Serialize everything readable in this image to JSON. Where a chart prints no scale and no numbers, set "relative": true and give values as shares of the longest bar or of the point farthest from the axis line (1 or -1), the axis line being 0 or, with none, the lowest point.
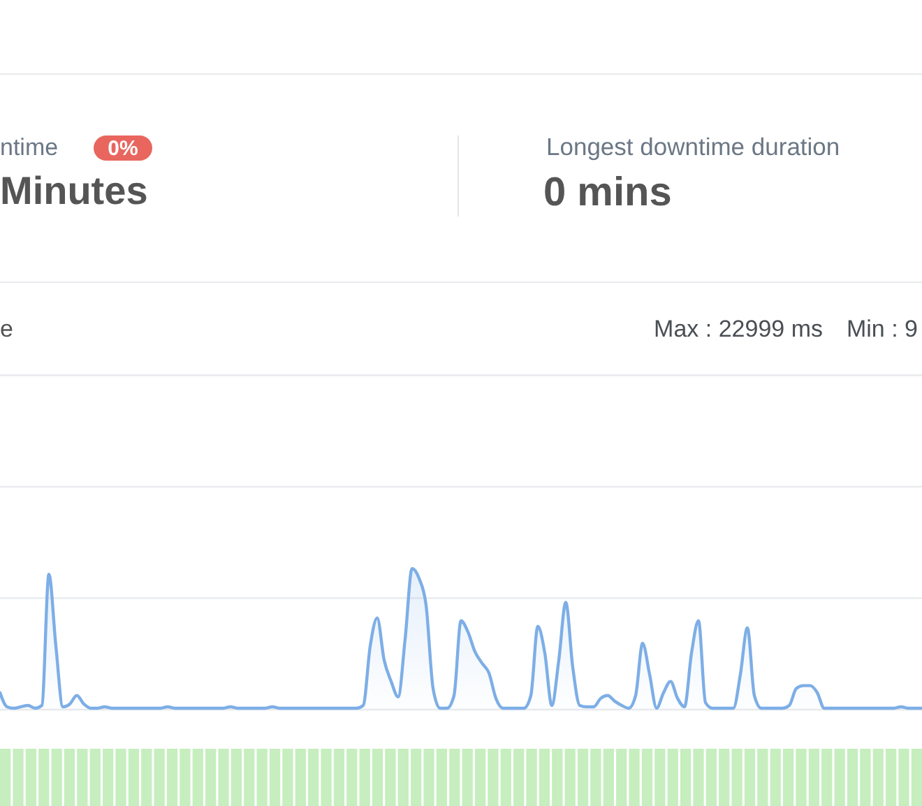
{
  "chart_data": [
    {
      "type": "other",
      "annotations": [
        "ntime",
        "0%",
        "Minutes",
        "Longest downtime duration",
        "0 mins"
      ]
    },
    {
      "type": "area",
      "title": "e",
      "annotations": [
        "Max : 22999 ms",
        "Min : 9"
      ],
      "relative": true,
      "ref_lines": [
        {
          "axis": "y",
          "value": 0.79,
          "color": "#e8eaed"
        },
        {
          "axis": "y",
          "value": 1.58,
          "color": "#e8eaed"
        },
        {
          "axis": "y",
          "value": 2.37,
          "color": "#e8eaed"
        }
      ],
      "categories": [
        null,
        null,
        null,
        null,
        null,
        null,
        null,
        null,
        null,
        null,
        null,
        null,
        null,
        null,
        null,
        null,
        null,
        null,
        null,
        null,
        null,
        null,
        null,
        null,
        null,
        null,
        null,
        null,
        null,
        null,
        null,
        null,
        null,
        null,
        null,
        null,
        null,
        null,
        null,
        null,
        null,
        null,
        null,
        null,
        null,
        null,
        null,
        null,
        null,
        null,
        null,
        null,
        null,
        null,
        null,
        null,
        null,
        null,
        null,
        null,
        null,
        null,
        null,
        null,
        null,
        null,
        null,
        null,
        null,
        null,
        null,
        null,
        null,
        null,
        null,
        null,
        null,
        null,
        null,
        null,
        null,
        null,
        null,
        null,
        null,
        null,
        null,
        null,
        null,
        null,
        null,
        null,
        null,
        null,
        null,
        null,
        null,
        null,
        null,
        null,
        null,
        null,
        null,
        null,
        null,
        null,
        null,
        null,
        null,
        null,
        null,
        null,
        null,
        null,
        null,
        null,
        null,
        null,
        null,
        null,
        null,
        null,
        null,
        null,
        null,
        null,
        null,
        null,
        null,
        null,
        null,
        null,
        null
      ],
      "series": [
        {
          "color": "#7daee6",
          "values": [
            0.12,
            0.02,
            0.01,
            0.02,
            0.03,
            0.01,
            0.03,
            0.96,
            0.45,
            0.02,
            0.04,
            0.1,
            0.04,
            0.01,
            0.01,
            0.02,
            0.01,
            0.01,
            0.01,
            0.01,
            0.01,
            0.01,
            0.01,
            0.01,
            0.02,
            0.01,
            0.01,
            0.01,
            0.01,
            0.01,
            0.01,
            0.01,
            0.01,
            0.02,
            0.01,
            0.01,
            0.01,
            0.01,
            0.01,
            0.02,
            0.01,
            0.01,
            0.01,
            0.01,
            0.01,
            0.01,
            0.01,
            0.01,
            0.01,
            0.01,
            0.01,
            0.01,
            0.03,
            0.45,
            0.65,
            0.35,
            0.2,
            0.09,
            0.5,
            1,
            0.93,
            0.74,
            0.15,
            0.01,
            0.01,
            0.1,
            0.63,
            0.55,
            0.41,
            0.33,
            0.26,
            0.08,
            0.01,
            0.01,
            0.01,
            0.01,
            0.1,
            0.59,
            0.4,
            0.03,
            0.35,
            0.76,
            0.3,
            0.03,
            0.02,
            0.02,
            0.08,
            0.1,
            0.06,
            0.03,
            0.01,
            0.1,
            0.47,
            0.25,
            0.01,
            0.12,
            0.2,
            0.08,
            0.02,
            0.4,
            0.63,
            0.05,
            0.01,
            0.01,
            0.01,
            0.01,
            0.25,
            0.58,
            0.1,
            0.01,
            0.01,
            0.01,
            0.01,
            0.03,
            0.15,
            0.17,
            0.17,
            0.12,
            0.01,
            0.01,
            0.01,
            0.01,
            0.01,
            0.01,
            0.01,
            0.01,
            0.01,
            0.01,
            0.01,
            0.02,
            0.01,
            0.01,
            0.01
          ]
        }
      ]
    },
    {
      "type": "bar",
      "relative": true,
      "color": "#c6eebf",
      "categories": [
        null,
        null,
        null,
        null,
        null,
        null,
        null,
        null,
        null,
        null,
        null,
        null,
        null,
        null,
        null,
        null,
        null,
        null,
        null,
        null,
        null,
        null,
        null,
        null,
        null,
        null,
        null,
        null,
        null,
        null,
        null,
        null,
        null,
        null,
        null,
        null,
        null,
        null,
        null,
        null,
        null,
        null,
        null,
        null,
        null,
        null,
        null,
        null,
        null,
        null,
        null,
        null,
        null,
        null,
        null,
        null,
        null,
        null,
        null,
        null,
        null,
        null,
        null,
        null,
        null,
        null,
        null,
        null,
        null,
        null,
        null,
        null
      ],
      "values": [
        1,
        1,
        1,
        1,
        1,
        1,
        1,
        1,
        1,
        1,
        1,
        1,
        1,
        1,
        1,
        1,
        1,
        1,
        1,
        1,
        1,
        1,
        1,
        1,
        1,
        1,
        1,
        1,
        1,
        1,
        1,
        1,
        1,
        1,
        1,
        1,
        1,
        1,
        1,
        1,
        1,
        1,
        1,
        1,
        1,
        1,
        1,
        1,
        1,
        1,
        1,
        1,
        1,
        1,
        1,
        1,
        1,
        1,
        1,
        1,
        1,
        1,
        1,
        1,
        1,
        1,
        1,
        1,
        1,
        1,
        1,
        1
      ]
    }
  ]
}
